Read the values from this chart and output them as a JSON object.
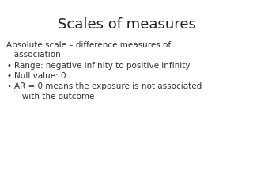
{
  "title": "Scales of measures",
  "title_fontsize": 13,
  "title_color": "#222222",
  "background_color": "#ffffff",
  "body_text_color": "#333333",
  "header_line1": "Absolute scale – difference measures of",
  "header_line2": "   association",
  "header_fontsize": 7.5,
  "bullets": [
    "Range: negative infinity to positive infinity",
    "Null value: 0",
    "AR = 0 means the exposure is not associated\n   with the outcome"
  ],
  "bullet_fontsize": 7.5,
  "bullet_char": "•"
}
